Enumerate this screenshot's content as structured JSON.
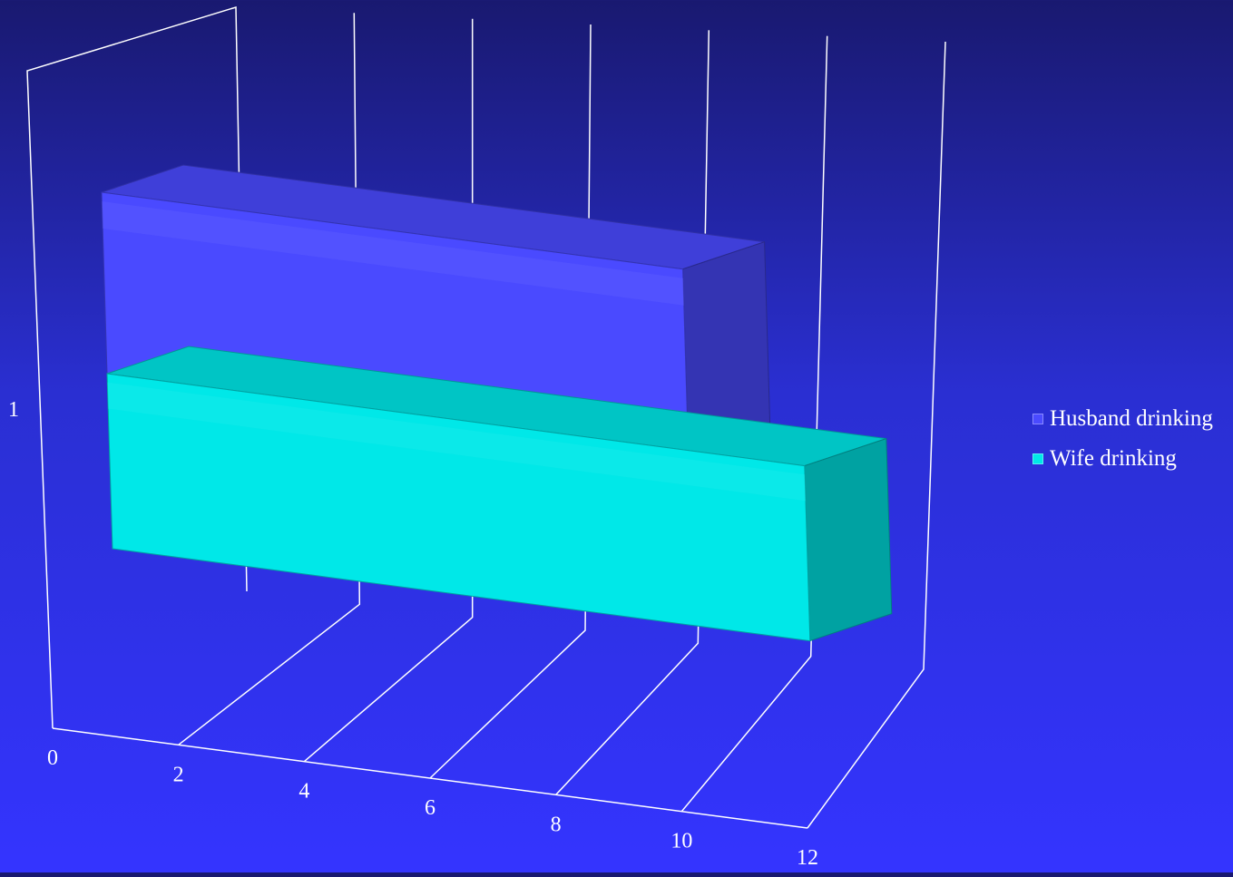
{
  "chart_data": {
    "type": "bar",
    "orientation": "horizontal",
    "style": "3d-clustered",
    "categories": [
      "1"
    ],
    "series": [
      {
        "name": "Husband drinking",
        "values": [
          10
        ],
        "color": "#4a4aff"
      },
      {
        "name": "Wife drinking",
        "values": [
          12
        ],
        "color": "#00e8e8"
      }
    ],
    "x_ticks": [
      "0",
      "2",
      "4",
      "6",
      "8",
      "10",
      "12"
    ],
    "xlim": [
      0,
      12
    ],
    "grid": true,
    "legend_position": "right",
    "title": "",
    "xlabel": "",
    "ylabel": ""
  },
  "colors": {
    "grid": "#ffffff",
    "text": "#ffffff",
    "background_top": "#191970",
    "background_bottom": "#3434ff"
  }
}
